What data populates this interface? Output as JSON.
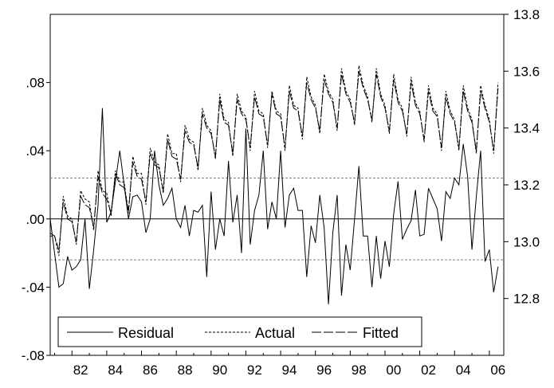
{
  "chart_data": {
    "type": "line",
    "title": "",
    "xlabel": "",
    "ylabel": "",
    "x_range": [
      1980.75,
      2006.83
    ],
    "x_ticks": [
      1982,
      1984,
      1986,
      1988,
      1990,
      1992,
      1994,
      1996,
      1998,
      2000,
      2002,
      2004,
      2006
    ],
    "x_tick_labels": [
      "82",
      "84",
      "86",
      "88",
      "90",
      "92",
      "94",
      "96",
      "98",
      "00",
      "02",
      "04",
      "06"
    ],
    "left_axis": {
      "ylim": [
        -0.08,
        0.12
      ],
      "ticks": [
        -0.08,
        -0.04,
        0.0,
        0.04,
        0.08
      ],
      "tick_labels": [
        "-.08",
        "-.04",
        ".00",
        ".04",
        ".08"
      ],
      "reference_lines": [
        0.0,
        0.024,
        -0.024
      ]
    },
    "right_axis": {
      "ylim": [
        12.6,
        13.8
      ],
      "ticks": [
        12.8,
        13.0,
        13.2,
        13.4,
        13.6,
        13.8
      ],
      "tick_labels": [
        "12.8",
        "13.0",
        "13.2",
        "13.4",
        "13.6",
        "13.8"
      ]
    },
    "grid": false,
    "legend": {
      "position": "bottom-left",
      "entries": [
        {
          "label": "Residual",
          "style": "solid"
        },
        {
          "label": "Actual",
          "style": "dotted"
        },
        {
          "label": "Fitted",
          "style": "dashed"
        }
      ]
    },
    "x_start": 1980.75,
    "x_step": 0.25,
    "series": [
      {
        "name": "Actual",
        "axis": "right",
        "style": "dotted",
        "values": [
          13.02,
          13.02,
          12.95,
          13.16,
          13.09,
          13.08,
          12.99,
          13.18,
          13.15,
          13.14,
          13.04,
          13.25,
          13.18,
          13.17,
          13.09,
          13.25,
          13.21,
          13.21,
          13.1,
          13.3,
          13.24,
          13.24,
          13.13,
          13.33,
          13.28,
          13.27,
          13.17,
          13.38,
          13.31,
          13.31,
          13.21,
          13.41,
          13.36,
          13.35,
          13.25,
          13.47,
          13.41,
          13.39,
          13.29,
          13.52,
          13.43,
          13.42,
          13.3,
          13.52,
          13.46,
          13.44,
          13.32,
          13.53,
          13.46,
          13.45,
          13.33,
          13.53,
          13.46,
          13.45,
          13.32,
          13.55,
          13.48,
          13.47,
          13.36,
          13.58,
          13.51,
          13.48,
          13.38,
          13.59,
          13.53,
          13.5,
          13.39,
          13.61,
          13.53,
          13.5,
          13.41,
          13.62,
          13.55,
          13.51,
          13.42,
          13.61,
          13.52,
          13.48,
          13.38,
          13.59,
          13.5,
          13.47,
          13.37,
          13.58,
          13.49,
          13.46,
          13.35,
          13.55,
          13.47,
          13.45,
          13.32,
          13.53,
          13.46,
          13.43,
          13.32,
          13.55,
          13.47,
          13.43,
          13.31,
          13.55,
          13.48,
          13.43,
          13.31,
          13.56
        ]
      },
      {
        "name": "Fitted",
        "axis": "right",
        "style": "dashed",
        "values": [
          13.03,
          13.02,
          12.97,
          13.14,
          13.08,
          13.07,
          13.0,
          13.16,
          13.13,
          13.12,
          13.05,
          13.23,
          13.17,
          13.15,
          13.1,
          13.24,
          13.2,
          13.19,
          13.11,
          13.28,
          13.23,
          13.22,
          13.14,
          13.31,
          13.27,
          13.26,
          13.18,
          13.36,
          13.3,
          13.29,
          13.22,
          13.39,
          13.35,
          13.34,
          13.26,
          13.45,
          13.4,
          13.38,
          13.3,
          13.5,
          13.42,
          13.41,
          13.31,
          13.5,
          13.45,
          13.43,
          13.33,
          13.51,
          13.45,
          13.44,
          13.34,
          13.52,
          13.45,
          13.44,
          13.33,
          13.53,
          13.47,
          13.46,
          13.37,
          13.56,
          13.5,
          13.47,
          13.39,
          13.57,
          13.52,
          13.49,
          13.4,
          13.59,
          13.52,
          13.49,
          13.42,
          13.6,
          13.54,
          13.5,
          13.43,
          13.59,
          13.51,
          13.47,
          13.39,
          13.57,
          13.49,
          13.46,
          13.38,
          13.56,
          13.48,
          13.45,
          13.36,
          13.53,
          13.46,
          13.44,
          13.33,
          13.51,
          13.45,
          13.42,
          13.33,
          13.53,
          13.46,
          13.42,
          13.32,
          13.53,
          13.47,
          13.42,
          13.32,
          13.54
        ]
      },
      {
        "name": "Residual",
        "axis": "left",
        "style": "solid",
        "values": [
          0.0,
          -0.02,
          -0.04,
          -0.038,
          -0.022,
          -0.03,
          -0.028,
          -0.024,
          0.0,
          -0.041,
          -0.018,
          0.008,
          0.065,
          -0.002,
          0.004,
          0.022,
          0.04,
          0.02,
          0.0,
          0.013,
          0.014,
          0.01,
          -0.008,
          0.0,
          0.04,
          0.02,
          0.008,
          0.012,
          0.018,
          0.0,
          -0.005,
          0.008,
          -0.01,
          0.005,
          0.004,
          0.008,
          -0.034,
          0.016,
          -0.018,
          0.0,
          -0.01,
          0.034,
          -0.002,
          0.014,
          -0.02,
          0.053,
          -0.015,
          0.005,
          0.014,
          0.04,
          -0.006,
          0.01,
          0.0,
          0.04,
          -0.005,
          0.014,
          0.018,
          0.005,
          0.005,
          -0.034,
          -0.004,
          -0.014,
          0.014,
          -0.005,
          -0.05,
          -0.008,
          0.014,
          -0.045,
          -0.015,
          -0.03,
          0.0,
          0.031,
          -0.01,
          -0.01,
          -0.04,
          -0.01,
          -0.035,
          -0.013,
          -0.028,
          0.003,
          0.022,
          -0.012,
          -0.006,
          -0.001,
          0.017,
          -0.01,
          -0.009,
          0.018,
          0.012,
          0.006,
          -0.013,
          0.016,
          0.012,
          0.024,
          0.02,
          0.044,
          0.025,
          -0.018,
          0.013,
          0.04,
          -0.025,
          -0.018,
          -0.043,
          -0.028
        ]
      }
    ]
  }
}
